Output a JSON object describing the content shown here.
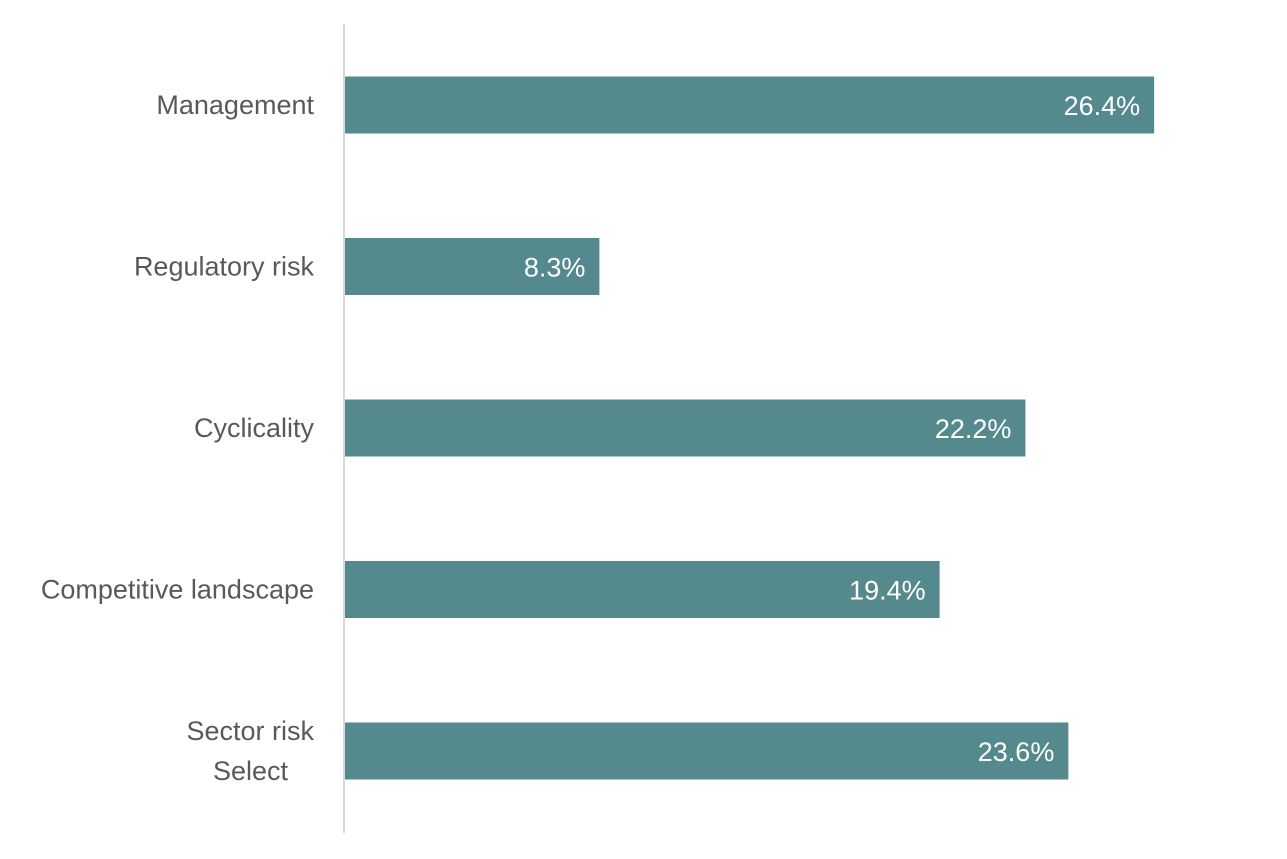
{
  "chart_data": {
    "type": "bar",
    "orientation": "horizontal",
    "categories": [
      "Management",
      "Regulatory risk",
      "Cyclicality",
      "Competitive landscape",
      "Sector risk\nSelect"
    ],
    "values": [
      26.4,
      8.3,
      22.2,
      19.4,
      23.6
    ],
    "data_labels": [
      "26.4%",
      "8.3%",
      "22.2%",
      "19.4%",
      "23.6%"
    ],
    "value_unit": "%",
    "title": "",
    "xlabel": "",
    "ylabel": "",
    "xlim": [
      0,
      30
    ],
    "grid": false,
    "legend": "none",
    "colors": {
      "bar": "#548a8e",
      "axis": "#d9d9d9",
      "category_text": "#595959",
      "data_label_text": "#ffffff"
    }
  }
}
